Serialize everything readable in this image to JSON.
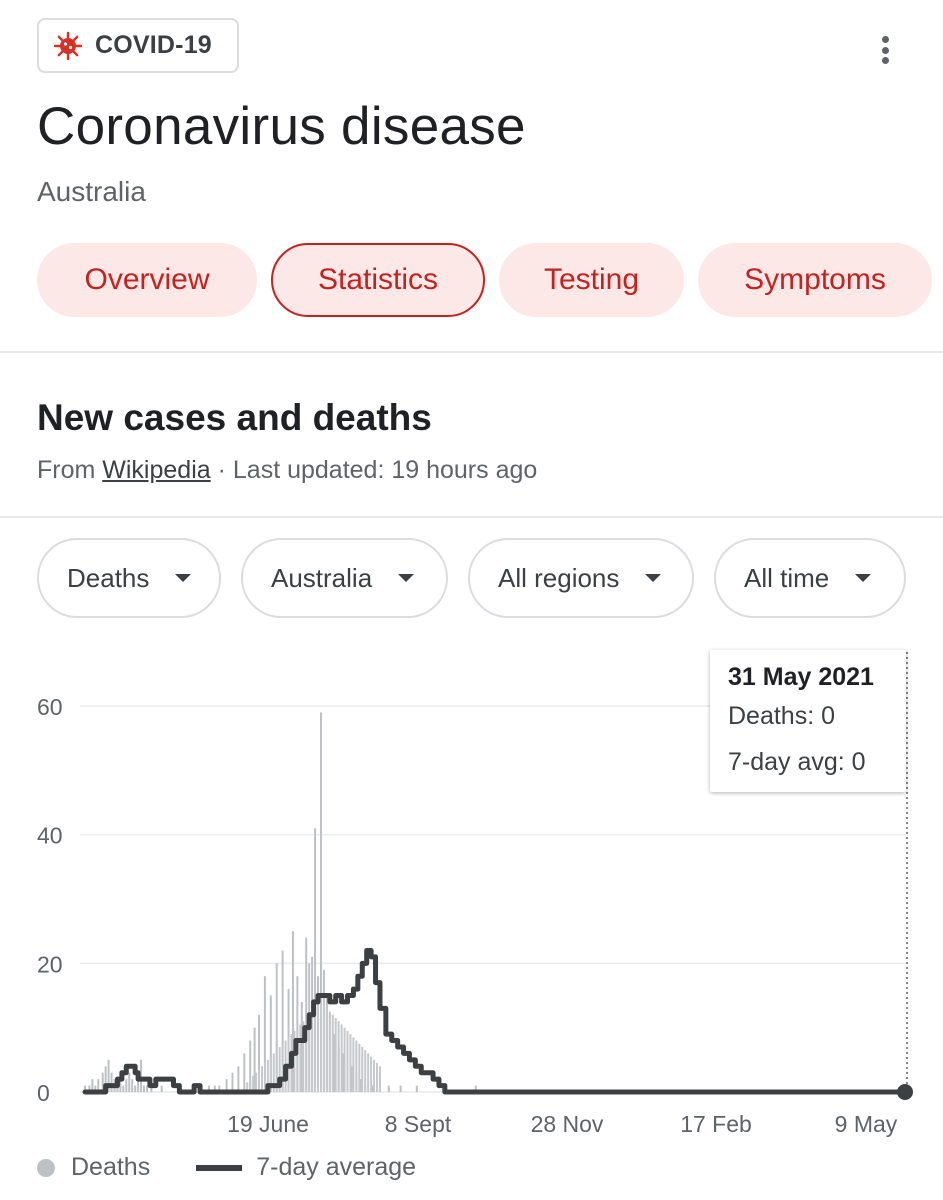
{
  "badge": {
    "label": "COVID-19"
  },
  "header": {
    "title": "Coronavirus disease",
    "subtitle": "Australia"
  },
  "tabs": [
    {
      "label": "Overview",
      "active": false
    },
    {
      "label": "Statistics",
      "active": true
    },
    {
      "label": "Testing",
      "active": false
    },
    {
      "label": "Symptoms",
      "active": false
    }
  ],
  "section": {
    "title": "New cases and deaths",
    "source_prefix": "From",
    "source_link": "Wikipedia",
    "updated": "· Last updated: 19 hours ago"
  },
  "filters": [
    {
      "label": "Deaths"
    },
    {
      "label": "Australia"
    },
    {
      "label": "All regions"
    },
    {
      "label": "All time"
    }
  ],
  "tooltip": {
    "date": "31 May 2021",
    "deaths_label": "Deaths: 0",
    "avg_label": "7-day avg: 0"
  },
  "legend": {
    "bars": "Deaths",
    "line": "7-day average"
  },
  "colors": {
    "accent": "#c5221f",
    "tab_bg": "#fce8e6",
    "bar": "#bdc1c6",
    "line": "#3c4043"
  },
  "chart_data": {
    "type": "bar",
    "ylim": [
      0,
      60
    ],
    "yticks": [
      0,
      20,
      40,
      60
    ],
    "xticks": [
      "19 June",
      "8 Sept",
      "28 Nov",
      "17 Feb",
      "9 May"
    ],
    "series": [
      {
        "name": "Deaths",
        "type": "bar",
        "points": [
          [
            0,
            1
          ],
          [
            3,
            1
          ],
          [
            5,
            2
          ],
          [
            7,
            1
          ],
          [
            9,
            2
          ],
          [
            12,
            3
          ],
          [
            14,
            4
          ],
          [
            16,
            5
          ],
          [
            18,
            3
          ],
          [
            20,
            2
          ],
          [
            22,
            1
          ],
          [
            24,
            2
          ],
          [
            26,
            1
          ],
          [
            28,
            2
          ],
          [
            30,
            3
          ],
          [
            32,
            2
          ],
          [
            34,
            1
          ],
          [
            36,
            2
          ],
          [
            38,
            5
          ],
          [
            40,
            1
          ],
          [
            42,
            1
          ],
          [
            45,
            1
          ],
          [
            52,
            1
          ],
          [
            84,
            1
          ],
          [
            88,
            1
          ],
          [
            91,
            1
          ],
          [
            96,
            2
          ],
          [
            100,
            3
          ],
          [
            104,
            4
          ],
          [
            108,
            6
          ],
          [
            112,
            8
          ],
          [
            115,
            10
          ],
          [
            118,
            12
          ],
          [
            122,
            18
          ],
          [
            126,
            15
          ],
          [
            130,
            20
          ],
          [
            134,
            22
          ],
          [
            138,
            16
          ],
          [
            141,
            25
          ],
          [
            144,
            18
          ],
          [
            147,
            14
          ],
          [
            150,
            24
          ],
          [
            152,
            20
          ],
          [
            154,
            21
          ],
          [
            156,
            41
          ],
          [
            158,
            18
          ],
          [
            160,
            59
          ],
          [
            162,
            19
          ],
          [
            164,
            15
          ],
          [
            166,
            12
          ],
          [
            169,
            9
          ],
          [
            172,
            7
          ],
          [
            175,
            6
          ],
          [
            178,
            5
          ],
          [
            181,
            4
          ],
          [
            184,
            3
          ],
          [
            187,
            2
          ],
          [
            190,
            1
          ],
          [
            195,
            1
          ],
          [
            200,
            2
          ],
          [
            206,
            1
          ],
          [
            214,
            1
          ],
          [
            225,
            1
          ],
          [
            265,
            1
          ]
        ]
      },
      {
        "name": "7-day average",
        "type": "line",
        "points": [
          [
            0,
            0
          ],
          [
            10,
            0
          ],
          [
            14,
            1
          ],
          [
            18,
            1
          ],
          [
            22,
            2
          ],
          [
            25,
            3
          ],
          [
            28,
            4
          ],
          [
            31,
            4
          ],
          [
            34,
            3
          ],
          [
            36,
            2
          ],
          [
            40,
            2
          ],
          [
            44,
            1
          ],
          [
            48,
            2
          ],
          [
            56,
            2
          ],
          [
            60,
            1
          ],
          [
            64,
            0
          ],
          [
            70,
            0
          ],
          [
            74,
            1
          ],
          [
            78,
            0
          ],
          [
            100,
            0
          ],
          [
            118,
            0
          ],
          [
            124,
            1
          ],
          [
            128,
            1
          ],
          [
            132,
            2
          ],
          [
            136,
            4
          ],
          [
            140,
            6
          ],
          [
            143,
            8
          ],
          [
            146,
            8
          ],
          [
            149,
            10
          ],
          [
            152,
            12
          ],
          [
            155,
            14
          ],
          [
            158,
            15
          ],
          [
            162,
            15
          ],
          [
            166,
            14
          ],
          [
            170,
            15
          ],
          [
            174,
            14
          ],
          [
            178,
            15
          ],
          [
            182,
            16
          ],
          [
            185,
            18
          ],
          [
            188,
            20
          ],
          [
            191,
            22
          ],
          [
            194,
            21
          ],
          [
            197,
            17
          ],
          [
            200,
            13
          ],
          [
            204,
            9
          ],
          [
            208,
            8
          ],
          [
            212,
            7
          ],
          [
            216,
            6
          ],
          [
            220,
            5
          ],
          [
            224,
            4
          ],
          [
            228,
            3
          ],
          [
            232,
            3
          ],
          [
            236,
            2
          ],
          [
            240,
            1
          ],
          [
            244,
            0
          ],
          [
            260,
            0
          ],
          [
            300,
            0
          ],
          [
            360,
            0
          ],
          [
            410,
            0
          ],
          [
            450,
            0
          ],
          [
            490,
            0
          ],
          [
            530,
            0
          ],
          [
            556,
            0
          ]
        ]
      }
    ]
  }
}
